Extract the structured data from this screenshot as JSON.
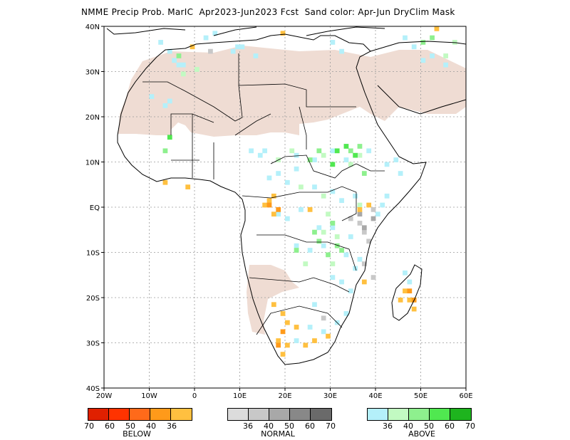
{
  "title": "NMME Precip Prob. MarIC  Apr2023-Jun2023 Fcst  Sand color: Apr-Jun DryClim Mask",
  "axes": {
    "lat_labels": [
      "40N",
      "30N",
      "20N",
      "10N",
      "EQ",
      "10S",
      "20S",
      "30S",
      "40S"
    ],
    "lon_labels": [
      "20W",
      "10W",
      "0",
      "10E",
      "20E",
      "30E",
      "40E",
      "50E",
      "60E"
    ],
    "lon_range": [
      -20,
      60
    ],
    "lat_range": [
      -40,
      40
    ],
    "grid": true
  },
  "colors": {
    "sand": "#efdcd3",
    "below": [
      "#e02000",
      "#ff3300",
      "#ff6a1a",
      "#ff9a1a",
      "#ffc040"
    ],
    "normal": [
      "#dcdcdc",
      "#c8c8c8",
      "#a8a8a8",
      "#888888",
      "#6a6a6a"
    ],
    "above": [
      "#b4f0fa",
      "#c2fac2",
      "#8ef08e",
      "#50e850",
      "#1eb41e"
    ]
  },
  "legend": {
    "below": {
      "name": "BELOW",
      "ticks": [
        "70",
        "60",
        "50",
        "40",
        "36"
      ]
    },
    "normal": {
      "name": "NORMAL",
      "ticks": [
        "36",
        "40",
        "50",
        "60",
        "70"
      ]
    },
    "above": {
      "name": "ABOVE",
      "ticks": [
        "36",
        "40",
        "50",
        "60",
        "70"
      ]
    }
  }
}
